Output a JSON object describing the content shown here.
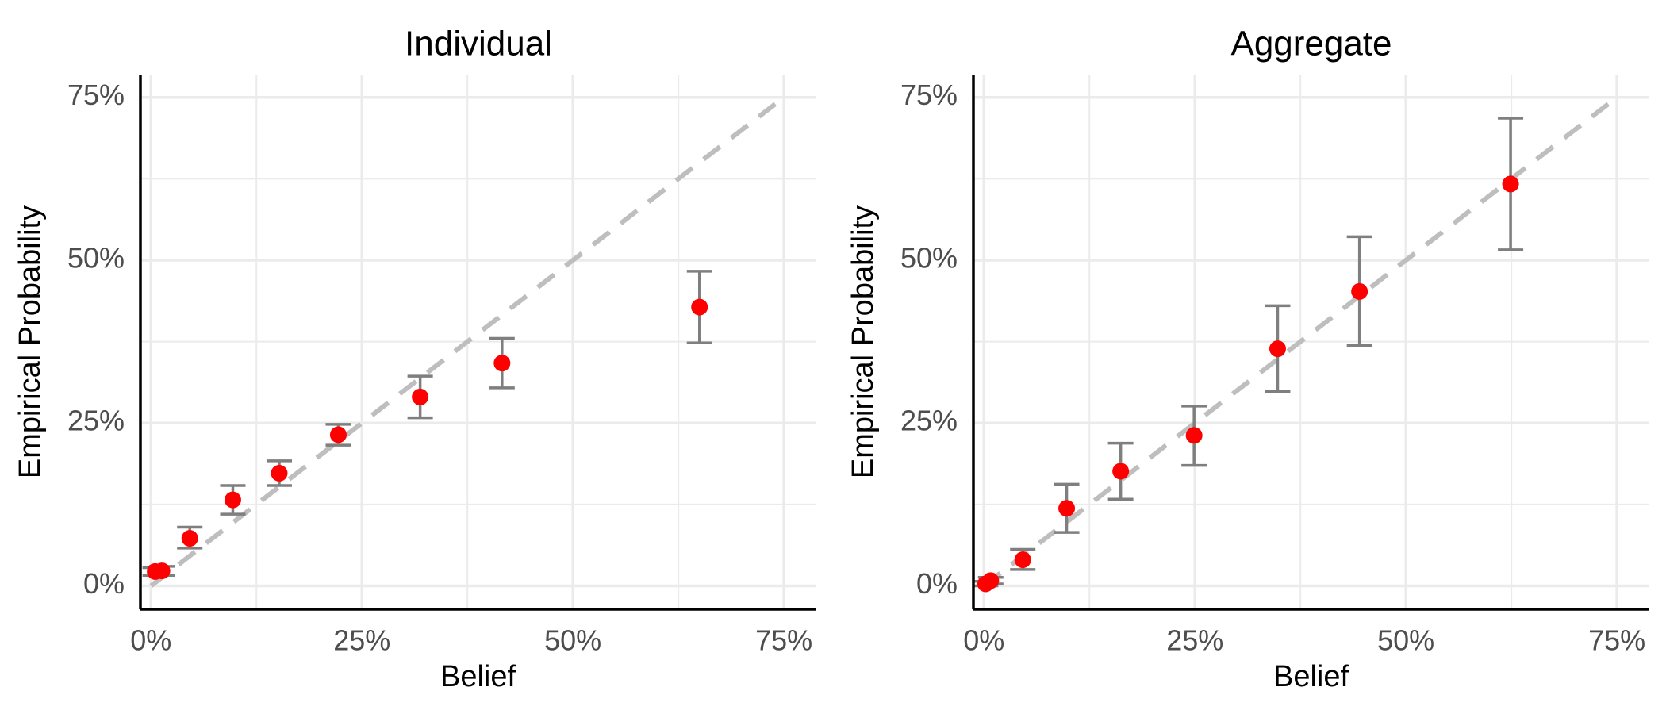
{
  "chart_data": [
    {
      "type": "scatter",
      "title": "Individual",
      "xlabel": "Belief",
      "ylabel": "Empirical Probability",
      "xlim": [
        -0.0125,
        0.7875
      ],
      "ylim": [
        -0.036,
        0.785
      ],
      "x_ticks": [
        0,
        0.25,
        0.5,
        0.75
      ],
      "x_tick_labels": [
        "0%",
        "25%",
        "50%",
        "75%"
      ],
      "y_ticks": [
        0,
        0.25,
        0.5,
        0.75
      ],
      "y_tick_labels": [
        "0%",
        "25%",
        "50%",
        "75%"
      ],
      "reference_line": {
        "style": "dashed",
        "color": "#bebebe",
        "from": [
          0,
          0
        ],
        "to": [
          0.75,
          0.75
        ]
      },
      "point_color": "#ff0000",
      "errorbar_color": "#7f7f7f",
      "grid": true,
      "points": [
        {
          "x": 0.005,
          "y": 0.022,
          "ymin": 0.016,
          "ymax": 0.028
        },
        {
          "x": 0.013,
          "y": 0.023,
          "ymin": 0.016,
          "ymax": 0.03
        },
        {
          "x": 0.046,
          "y": 0.073,
          "ymin": 0.058,
          "ymax": 0.09
        },
        {
          "x": 0.097,
          "y": 0.132,
          "ymin": 0.11,
          "ymax": 0.154
        },
        {
          "x": 0.152,
          "y": 0.173,
          "ymin": 0.154,
          "ymax": 0.192
        },
        {
          "x": 0.222,
          "y": 0.232,
          "ymin": 0.216,
          "ymax": 0.248
        },
        {
          "x": 0.319,
          "y": 0.29,
          "ymin": 0.258,
          "ymax": 0.322
        },
        {
          "x": 0.416,
          "y": 0.342,
          "ymin": 0.304,
          "ymax": 0.38
        },
        {
          "x": 0.65,
          "y": 0.428,
          "ymin": 0.373,
          "ymax": 0.483
        }
      ]
    },
    {
      "type": "scatter",
      "title": "Aggregate",
      "xlabel": "Belief",
      "ylabel": "Empirical Probability",
      "xlim": [
        -0.0125,
        0.7875
      ],
      "ylim": [
        -0.036,
        0.785
      ],
      "x_ticks": [
        0,
        0.25,
        0.5,
        0.75
      ],
      "x_tick_labels": [
        "0%",
        "25%",
        "50%",
        "75%"
      ],
      "y_ticks": [
        0,
        0.25,
        0.5,
        0.75
      ],
      "y_tick_labels": [
        "0%",
        "25%",
        "50%",
        "75%"
      ],
      "reference_line": {
        "style": "dashed",
        "color": "#bebebe",
        "from": [
          0,
          0
        ],
        "to": [
          0.75,
          0.75
        ]
      },
      "point_color": "#ff0000",
      "errorbar_color": "#7f7f7f",
      "grid": true,
      "points": [
        {
          "x": 0.002,
          "y": 0.003,
          "ymin": 0.0,
          "ymax": 0.007
        },
        {
          "x": 0.008,
          "y": 0.008,
          "ymin": 0.003,
          "ymax": 0.013
        },
        {
          "x": 0.046,
          "y": 0.04,
          "ymin": 0.025,
          "ymax": 0.056
        },
        {
          "x": 0.098,
          "y": 0.119,
          "ymin": 0.082,
          "ymax": 0.156
        },
        {
          "x": 0.162,
          "y": 0.176,
          "ymin": 0.133,
          "ymax": 0.219
        },
        {
          "x": 0.249,
          "y": 0.231,
          "ymin": 0.185,
          "ymax": 0.276
        },
        {
          "x": 0.348,
          "y": 0.364,
          "ymin": 0.298,
          "ymax": 0.43
        },
        {
          "x": 0.445,
          "y": 0.452,
          "ymin": 0.369,
          "ymax": 0.536
        },
        {
          "x": 0.624,
          "y": 0.617,
          "ymin": 0.516,
          "ymax": 0.718
        }
      ]
    }
  ]
}
